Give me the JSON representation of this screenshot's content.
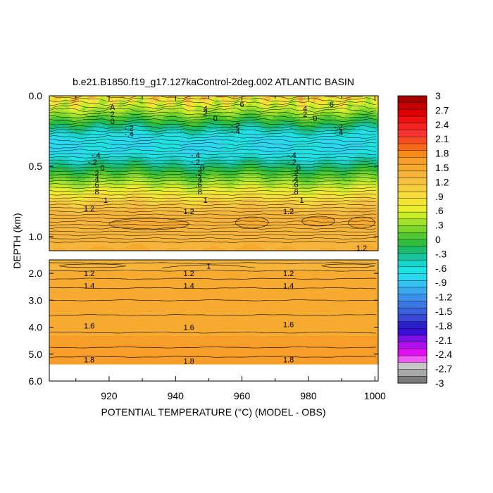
{
  "chart_data": {
    "type": "heatmap",
    "title": "b.e21.B1850.f19_g17.127kaControl-2deg.002 ATLANTIC BASIN",
    "xlabel": "POTENTIAL TEMPERATURE (°C) (MODEL - OBS)",
    "ylabel": "DEPTH (km)",
    "xlim": [
      902,
      1001
    ],
    "x_ticks": [
      "920",
      "940",
      "960",
      "980",
      "1000"
    ],
    "upper_panel": {
      "ylim": [
        0.0,
        1.1
      ],
      "y_ticks": [
        "0.0",
        "0.5",
        "1.0"
      ]
    },
    "lower_panel": {
      "ylim": [
        1.5,
        6.0
      ],
      "y_ticks": [
        "2.0",
        "3.0",
        "4.0",
        "5.0",
        "6.0"
      ]
    },
    "colorbar": {
      "labels": [
        "3",
        "2.7",
        "2.4",
        "2.1",
        "1.8",
        "1.5",
        "1.2",
        ".9",
        ".6",
        ".3",
        "0",
        "-.3",
        "-.6",
        "-.9",
        "-1.2",
        "-1.5",
        "-1.8",
        "-2.1",
        "-2.4",
        "-2.7",
        "-3"
      ],
      "colors": [
        "#a70000",
        "#c40000",
        "#dd0000",
        "#ee1111",
        "#f52222",
        "#f83333",
        "#f84d22",
        "#f86a1a",
        "#f88a1a",
        "#f79e2a",
        "#f7aa30",
        "#f6b53a",
        "#f6c040",
        "#f7cf3d",
        "#f7db3a",
        "#f4e433",
        "#e9ed2c",
        "#c9ec2a",
        "#a2e22c",
        "#7ad62a",
        "#4fc830",
        "#2fbd3e",
        "#1cbb6a",
        "#18c49a",
        "#1ad5cc",
        "#1ee3e3",
        "#2ad8f0",
        "#33c1f1",
        "#3aa9ef",
        "#3a90ea",
        "#3a78e3",
        "#3a60db",
        "#3a48d3",
        "#2a22c8",
        "#3a10d6",
        "#7d10e5",
        "#b010ea",
        "#e010f0",
        "#ef5cf3",
        "#c7c7c7",
        "#a8a8a8",
        "#7c7c7c"
      ]
    },
    "contour_labels": {
      "upper": [
        {
          "x": 921,
          "depth": 0.08,
          "text": "A"
        },
        {
          "x": 921,
          "depth": 0.13,
          "text": "2"
        },
        {
          "x": 921,
          "depth": 0.18,
          "text": "0"
        },
        {
          "x": 926,
          "depth": 0.23,
          "text": "-.2"
        },
        {
          "x": 926,
          "depth": 0.27,
          "text": "-.4"
        },
        {
          "x": 949,
          "depth": 0.09,
          "text": "4"
        },
        {
          "x": 949,
          "depth": 0.12,
          "text": "2"
        },
        {
          "x": 952,
          "depth": 0.16,
          "text": "0"
        },
        {
          "x": 960,
          "depth": 0.06,
          "text": "6"
        },
        {
          "x": 958,
          "depth": 0.21,
          "text": "-.2"
        },
        {
          "x": 958,
          "depth": 0.25,
          "text": "-.4"
        },
        {
          "x": 979,
          "depth": 0.09,
          "text": "4"
        },
        {
          "x": 979,
          "depth": 0.13,
          "text": "2"
        },
        {
          "x": 982,
          "depth": 0.16,
          "text": "0"
        },
        {
          "x": 987,
          "depth": 0.06,
          "text": "6"
        },
        {
          "x": 989,
          "depth": 0.22,
          "text": "-.2"
        },
        {
          "x": 989,
          "depth": 0.26,
          "text": "-.4"
        },
        {
          "x": 916,
          "depth": 0.42,
          "text": "-.4"
        },
        {
          "x": 915,
          "depth": 0.47,
          "text": "-.2"
        },
        {
          "x": 918,
          "depth": 0.51,
          "text": "0"
        },
        {
          "x": 916,
          "depth": 0.55,
          "text": ".2"
        },
        {
          "x": 916,
          "depth": 0.59,
          "text": ".4"
        },
        {
          "x": 916,
          "depth": 0.63,
          "text": ".6"
        },
        {
          "x": 916,
          "depth": 0.68,
          "text": ".8"
        },
        {
          "x": 919,
          "depth": 0.74,
          "text": "1"
        },
        {
          "x": 914,
          "depth": 0.8,
          "text": "1.2"
        },
        {
          "x": 946,
          "depth": 0.42,
          "text": "-.4"
        },
        {
          "x": 946,
          "depth": 0.47,
          "text": "-.2"
        },
        {
          "x": 948,
          "depth": 0.51,
          "text": "0"
        },
        {
          "x": 947,
          "depth": 0.55,
          "text": ".2"
        },
        {
          "x": 947,
          "depth": 0.59,
          "text": ".4"
        },
        {
          "x": 947,
          "depth": 0.63,
          "text": ".6"
        },
        {
          "x": 947,
          "depth": 0.68,
          "text": ".8"
        },
        {
          "x": 949,
          "depth": 0.74,
          "text": "1"
        },
        {
          "x": 944,
          "depth": 0.82,
          "text": "1.2"
        },
        {
          "x": 975,
          "depth": 0.42,
          "text": "-.4"
        },
        {
          "x": 975,
          "depth": 0.47,
          "text": "-.2"
        },
        {
          "x": 977,
          "depth": 0.51,
          "text": "0"
        },
        {
          "x": 976,
          "depth": 0.55,
          "text": ".2"
        },
        {
          "x": 976,
          "depth": 0.59,
          "text": ".4"
        },
        {
          "x": 976,
          "depth": 0.63,
          "text": ".6"
        },
        {
          "x": 976,
          "depth": 0.68,
          "text": ".8"
        },
        {
          "x": 978,
          "depth": 0.74,
          "text": "1"
        },
        {
          "x": 974,
          "depth": 0.82,
          "text": "1.2"
        },
        {
          "x": 996,
          "depth": 1.08,
          "text": "1.2"
        }
      ],
      "lower": [
        {
          "x": 950,
          "depth": 1.72,
          "text": "1"
        },
        {
          "x": 914,
          "depth": 2.0,
          "text": "1.2"
        },
        {
          "x": 944,
          "depth": 2.0,
          "text": "1.2"
        },
        {
          "x": 974,
          "depth": 2.0,
          "text": "1.2"
        },
        {
          "x": 914,
          "depth": 2.45,
          "text": "1.4"
        },
        {
          "x": 944,
          "depth": 2.45,
          "text": "1.4"
        },
        {
          "x": 974,
          "depth": 2.45,
          "text": "1.4"
        },
        {
          "x": 914,
          "depth": 3.95,
          "text": "1.6"
        },
        {
          "x": 944,
          "depth": 4.0,
          "text": "1.6"
        },
        {
          "x": 974,
          "depth": 3.9,
          "text": "1.6"
        },
        {
          "x": 914,
          "depth": 5.2,
          "text": "1.8"
        },
        {
          "x": 944,
          "depth": 5.25,
          "text": "1.8"
        },
        {
          "x": 974,
          "depth": 5.2,
          "text": "1.8"
        }
      ]
    }
  }
}
